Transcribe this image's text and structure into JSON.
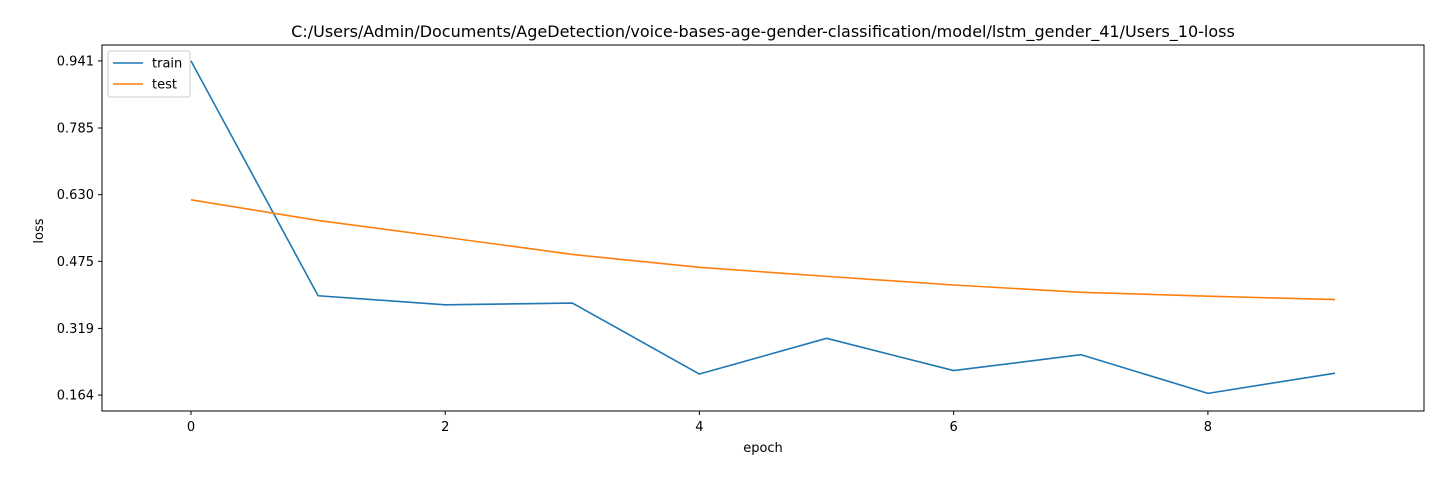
{
  "chart_data": {
    "type": "line",
    "title": "C:/Users/Admin/Documents/AgeDetection/voice-bases-age-gender-classification/model/lstm_gender_41/Users_10-loss",
    "xlabel": "epoch",
    "ylabel": "loss",
    "x": [
      0,
      1,
      2,
      3,
      4,
      5,
      6,
      7,
      8,
      9
    ],
    "xlim": [
      -0.7,
      9.7
    ],
    "ylim": [
      0.127,
      0.978
    ],
    "xticks": [
      0,
      2,
      4,
      6,
      8
    ],
    "xtick_labels": [
      "0",
      "2",
      "4",
      "6",
      "8"
    ],
    "yticks": [
      0.164,
      0.319,
      0.475,
      0.63,
      0.785,
      0.941
    ],
    "ytick_labels": [
      "0.164",
      "0.319",
      "0.475",
      "0.630",
      "0.785",
      "0.941"
    ],
    "grid": false,
    "legend_position": "upper left",
    "series": [
      {
        "name": "train",
        "color": "#1f77b4",
        "values": [
          0.941,
          0.395,
          0.374,
          0.378,
          0.213,
          0.296,
          0.221,
          0.258,
          0.168,
          0.215
        ]
      },
      {
        "name": "test",
        "color": "#ff7f0e",
        "values": [
          0.618,
          0.57,
          0.531,
          0.491,
          0.461,
          0.44,
          0.42,
          0.403,
          0.394,
          0.386
        ]
      }
    ]
  }
}
